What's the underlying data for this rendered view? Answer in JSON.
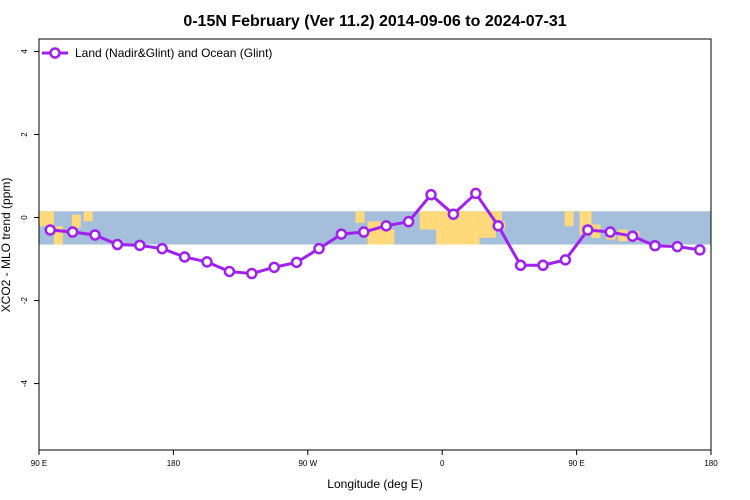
{
  "chart_data": {
    "type": "line",
    "title": "0-15N February (Ver 11.2)   2014-09-06 to 2024-07-31",
    "xlabel": "Longitude (deg E)",
    "ylabel": "XCO2 - MLO trend (ppm)",
    "x_ticks": [
      {
        "value": 90,
        "label": "90 E"
      },
      {
        "value": 180,
        "label": "180"
      },
      {
        "value": 270,
        "label": "90 W"
      },
      {
        "value": 360,
        "label": "0"
      },
      {
        "value": 450,
        "label": "90 E"
      },
      {
        "value": 540,
        "label": "180"
      }
    ],
    "y_ticks": [
      {
        "value": -4,
        "label": "-4"
      },
      {
        "value": -2,
        "label": "-2"
      },
      {
        "value": 0,
        "label": "0"
      },
      {
        "value": 2,
        "label": "2"
      },
      {
        "value": 4,
        "label": "4"
      }
    ],
    "xlim": [
      90,
      540
    ],
    "ylim": [
      -5.6,
      4.3
    ],
    "latitude_band_ppm": [
      -0.65,
      0.15
    ],
    "legend_position": "top-left",
    "series": [
      {
        "name": "Land (Nadir&Glint) and Ocean (Glint)",
        "color": "#a020f0",
        "x": [
          97.5,
          112.5,
          127.5,
          142.5,
          157.5,
          172.5,
          187.5,
          202.5,
          217.5,
          232.5,
          247.5,
          262.5,
          277.5,
          292.5,
          307.5,
          322.5,
          337.5,
          352.5,
          367.5,
          382.5,
          397.5,
          412.5,
          427.5,
          442.5,
          457.5,
          472.5,
          487.5,
          502.5,
          517.5,
          532.5
        ],
        "y": [
          -0.3,
          -0.35,
          -0.42,
          -0.65,
          -0.67,
          -0.75,
          -0.95,
          -1.07,
          -1.3,
          -1.35,
          -1.2,
          -1.08,
          -0.75,
          -0.4,
          -0.35,
          -0.2,
          -0.1,
          0.55,
          0.08,
          0.58,
          -0.2,
          -1.15,
          -1.15,
          -1.02,
          -0.3,
          -0.35,
          -0.45,
          -0.68,
          -0.7,
          -0.78
        ]
      }
    ]
  }
}
